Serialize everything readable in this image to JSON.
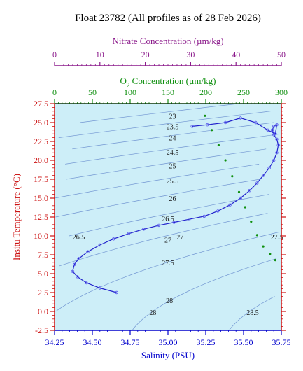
{
  "chart_data": {
    "type": "scatter",
    "title": "Float 23782  (All profiles as of 28 Feb 2026)",
    "xlabel": "Salinity (PSU)",
    "ylabel": "Insitu Temperature (°C)",
    "xlim": [
      34.25,
      35.75
    ],
    "ylim": [
      -2.5,
      27.5
    ],
    "x_ticks": [
      "34.25",
      "34.50",
      "34.75",
      "35.00",
      "35.25",
      "35.50",
      "35.75"
    ],
    "y_ticks": [
      "-2.5",
      "0.0",
      "2.5",
      "5.0",
      "7.5",
      "10.0",
      "12.5",
      "15.0",
      "17.5",
      "20.0",
      "22.5",
      "25.0",
      "27.5"
    ],
    "nitrate_axis": {
      "label_prefix": "Nitrate Concentration ",
      "label_unit": "(µm/kg)",
      "lim": [
        0,
        50
      ],
      "ticks": [
        "0",
        "10",
        "20",
        "30",
        "40",
        "50"
      ],
      "color": "#8b1a8b"
    },
    "oxygen_axis": {
      "label_o": "O",
      "label_sub": "2",
      "label_rest": " Concentration (µm/kg)",
      "lim": [
        0,
        300
      ],
      "ticks": [
        "0",
        "50",
        "100",
        "150",
        "200",
        "250",
        "300"
      ],
      "color": "#109010"
    },
    "density_contours": [
      "23",
      "23.5",
      "24",
      "24.5",
      "25",
      "25.5",
      "26",
      "26.5",
      "27",
      "27.5",
      "28",
      "28.5"
    ],
    "density_labels": [
      {
        "text": "23",
        "s": 35.03,
        "t": 25.8
      },
      {
        "text": "23.5",
        "s": 35.03,
        "t": 24.4
      },
      {
        "text": "24",
        "s": 35.03,
        "t": 22.9
      },
      {
        "text": "24.5",
        "s": 35.03,
        "t": 21.0
      },
      {
        "text": "25",
        "s": 35.03,
        "t": 19.2
      },
      {
        "text": "25.5",
        "s": 35.03,
        "t": 17.2
      },
      {
        "text": "26",
        "s": 35.03,
        "t": 14.9
      },
      {
        "text": "26.5",
        "s": 35.0,
        "t": 12.2
      },
      {
        "text": "26.5",
        "s": 34.41,
        "t": 9.8
      },
      {
        "text": "27",
        "s": 35.0,
        "t": 9.4
      },
      {
        "text": "27",
        "s": 35.08,
        "t": 9.8
      },
      {
        "text": "27.5",
        "s": 35.0,
        "t": 6.4
      },
      {
        "text": "27.5",
        "s": 35.72,
        "t": 9.8
      },
      {
        "text": "28",
        "s": 35.01,
        "t": 1.4
      },
      {
        "text": "28",
        "s": 34.9,
        "t": -0.2
      },
      {
        "text": "28.5",
        "s": 35.56,
        "t": -0.2
      }
    ],
    "series": [
      {
        "color": "#2222cc",
        "x": [
          34.66,
          34.55,
          34.46,
          34.4,
          34.37,
          34.38,
          34.41,
          34.47,
          34.55,
          34.64,
          34.74,
          34.84,
          34.94,
          35.04,
          35.14,
          35.24,
          35.33,
          35.41,
          35.48,
          35.54,
          35.59,
          35.63,
          35.67,
          35.7,
          35.72,
          35.73,
          35.72,
          35.7,
          35.69,
          35.7,
          35.72,
          35.71,
          35.66,
          35.58,
          35.48,
          35.38,
          35.26,
          35.16
        ],
        "y": [
          2.5,
          3.1,
          3.8,
          4.6,
          5.3,
          6.2,
          7.0,
          7.9,
          8.8,
          9.6,
          10.3,
          10.9,
          11.4,
          11.8,
          12.2,
          12.6,
          13.3,
          14.1,
          15.0,
          16.0,
          17.0,
          18.0,
          19.0,
          20.0,
          21.0,
          22.0,
          22.8,
          23.4,
          24.0,
          24.5,
          24.7,
          23.5,
          24.0,
          25.0,
          25.6,
          25.0,
          24.7,
          24.5
        ]
      },
      {
        "color": "#109010",
        "x": [
          199,
          208,
          217,
          226,
          235,
          244,
          252,
          260,
          268,
          276,
          285,
          292
        ],
        "y": [
          25.9,
          24.0,
          22.0,
          20.0,
          17.9,
          15.8,
          13.8,
          11.9,
          10.1,
          8.6,
          7.6,
          6.8
        ]
      }
    ]
  }
}
